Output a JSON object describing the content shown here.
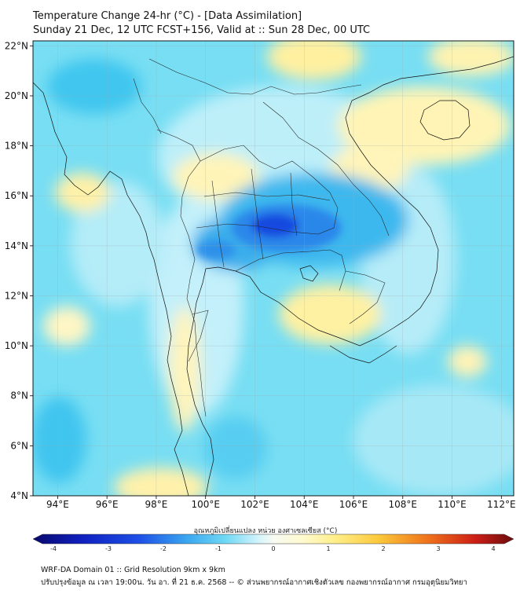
{
  "title": {
    "line1": "Temperature Change 24-hr (°C) - [Data Assimilation]",
    "line2": "Sunday 21 Dec, 12 UTC FCST+156, Valid at :: Sun 28 Dec, 00 UTC"
  },
  "map": {
    "lat_labels": [
      "4°N",
      "6°N",
      "8°N",
      "10°N",
      "12°N",
      "14°N",
      "16°N",
      "18°N",
      "20°N",
      "22°N"
    ],
    "lon_labels": [
      "94°E",
      "96°E",
      "98°E",
      "100°E",
      "102°E",
      "104°E",
      "106°E",
      "108°E",
      "110°E",
      "112°E"
    ],
    "lat_range": [
      4,
      22.2
    ],
    "lon_range": [
      93.0,
      112.5
    ]
  },
  "colorbar": {
    "title": "อุณหภูมิเปลี่ยนแปลง หน่วย องศาเซลเซียส (°C)",
    "ticks": [
      "-4",
      "-3",
      "-2",
      "-1",
      "0",
      "1",
      "2",
      "3",
      "4"
    ],
    "range": [
      -4,
      4
    ]
  },
  "footer": {
    "line1": "WRF-DA Domain 01 :: Grid Resolution 9km x 9km",
    "line2": "ปรับปรุงข้อมูล ณ เวลา 19:00น. วัน อา. ที่ 21 ธ.ค. 2568 -- © ส่วนพยากรณ์อากาศเชิงตัวเลข กองพยากรณ์อากาศ กรมอุตุนิยมวิทยา"
  },
  "colors": {
    "ocean_cyan": "#6fe0f4",
    "land_light": "#c9f3fb",
    "warm_yellow": "#fff1a0",
    "cold_blue": "#1f6be8",
    "deep_blue": "#0b2fd9"
  }
}
